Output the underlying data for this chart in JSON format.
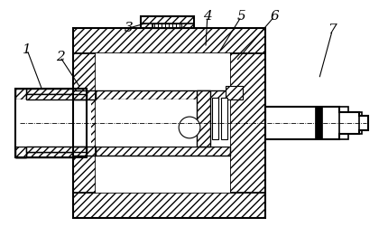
{
  "background_color": "#ffffff",
  "line_color": "#000000",
  "label_fontsize": 11,
  "figsize": [
    4.3,
    2.72
  ],
  "dpi": 100
}
